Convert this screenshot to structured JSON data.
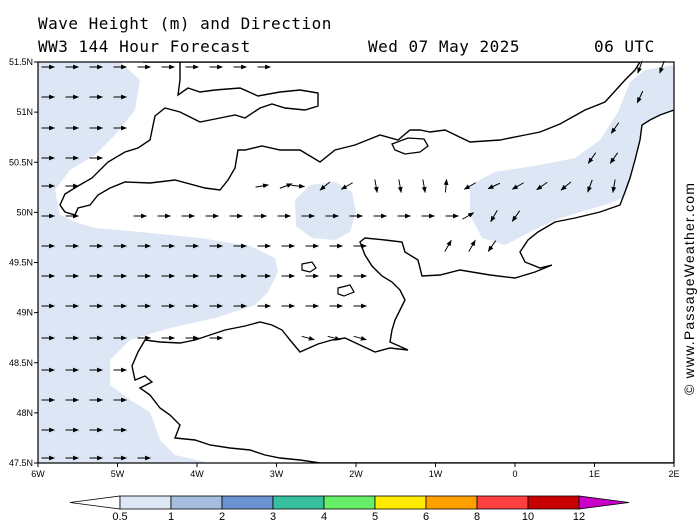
{
  "header": {
    "title": "Wave Height (m) and Direction",
    "model": "WW3 144 Hour Forecast",
    "date": "Wed 07 May 2025",
    "time": "06 UTC"
  },
  "credit": "© www.PassageWeather.com",
  "axes": {
    "lat_labels": [
      "51.5N",
      "51N",
      "50.5N",
      "50N",
      "49.5N",
      "49N",
      "48.5N",
      "48N",
      "47.5N"
    ],
    "lon_labels": [
      "6W",
      "5W",
      "4W",
      "3W",
      "2W",
      "1W",
      "0",
      "1E",
      "2E"
    ],
    "lon_range": [
      -6,
      2
    ],
    "lat_range": [
      47.5,
      51.5
    ]
  },
  "colorbar": {
    "labels": [
      "0.5",
      "1",
      "2",
      "3",
      "4",
      "5",
      "6",
      "8",
      "10",
      "12"
    ],
    "colors": [
      "#dce6f4",
      "#a6bfe0",
      "#6a93d2",
      "#36c0a0",
      "#66ee66",
      "#ffea00",
      "#ff9f00",
      "#ff4040",
      "#c80000",
      "#c800c8"
    ],
    "low_color": "#ffffff",
    "high_color": "#c800c8"
  },
  "colors": {
    "sea_low": "#ffffff",
    "sea_band": "#dce6f4",
    "coast": "#000000"
  }
}
